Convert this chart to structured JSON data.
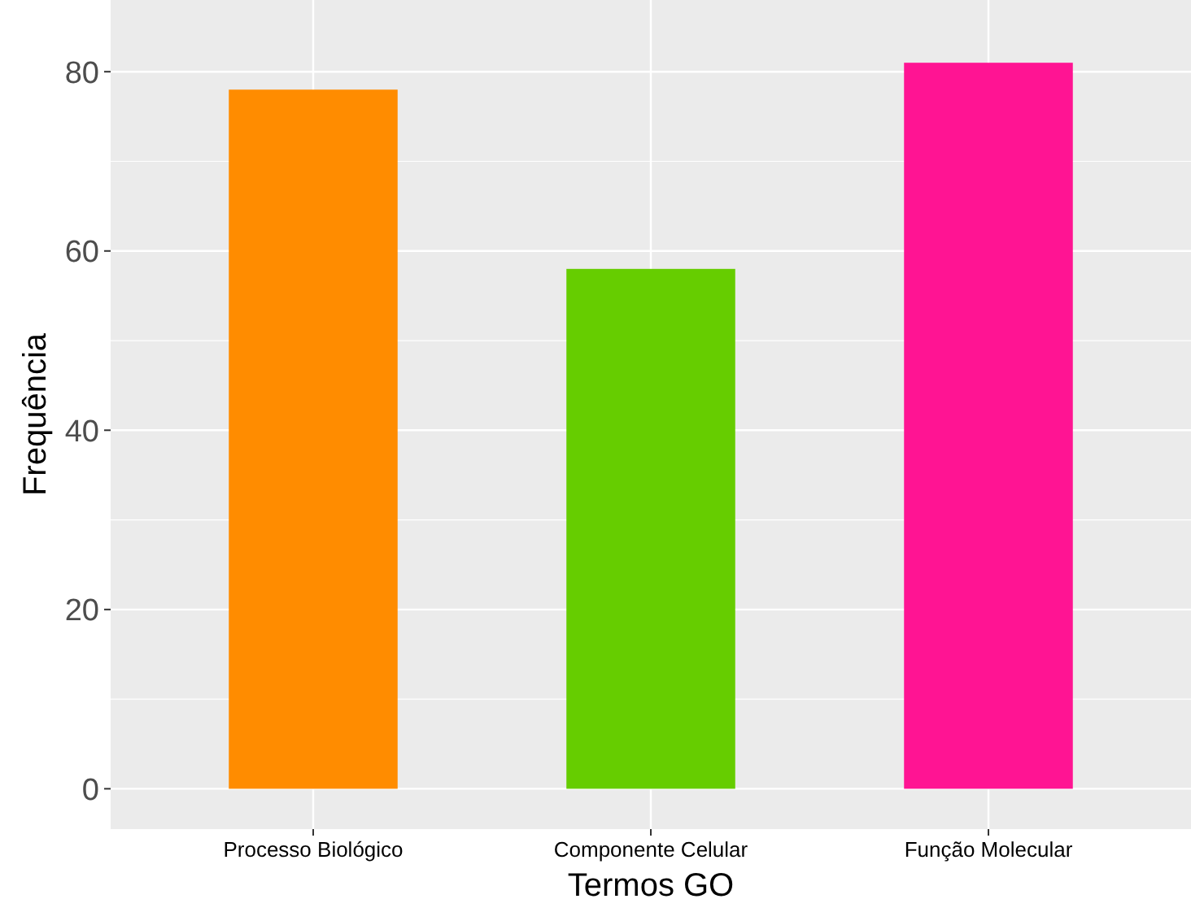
{
  "chart_data": {
    "type": "bar",
    "xlabel": "Termos GO",
    "ylabel": "Frequência",
    "categories": [
      "Processo Biológico",
      "Componente Celular",
      "Função Molecular"
    ],
    "values": [
      78,
      58,
      81
    ],
    "colors": [
      "#ff8c00",
      "#66cd00",
      "#ff1493"
    ],
    "ylim": [
      -4.5,
      88
    ],
    "yticks": [
      0,
      20,
      40,
      60,
      80
    ],
    "grid": true
  }
}
